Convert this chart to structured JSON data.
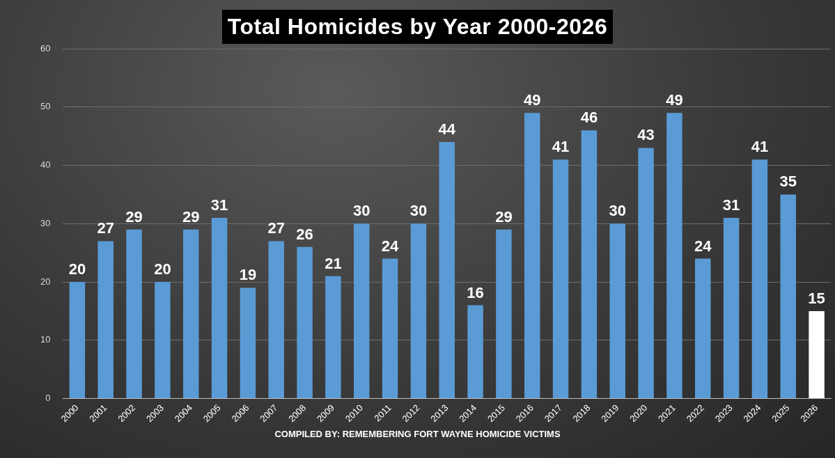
{
  "chart_data": {
    "type": "bar",
    "title": "Total Homicides by Year 2000-2026",
    "categories": [
      "2000",
      "2001",
      "2002",
      "2003",
      "2004",
      "2005",
      "2006",
      "2007",
      "2008",
      "2009",
      "2010",
      "2011",
      "2012",
      "2013",
      "2014",
      "2015",
      "2016",
      "2017",
      "2018",
      "2019",
      "2020",
      "2021",
      "2022",
      "2023",
      "2024",
      "2025",
      "2026"
    ],
    "values": [
      20,
      27,
      29,
      20,
      29,
      31,
      19,
      27,
      26,
      21,
      30,
      24,
      30,
      44,
      16,
      29,
      49,
      41,
      46,
      30,
      43,
      49,
      24,
      31,
      41,
      35,
      15
    ],
    "colors": [
      "#5b9bd5",
      "#5b9bd5",
      "#5b9bd5",
      "#5b9bd5",
      "#5b9bd5",
      "#5b9bd5",
      "#5b9bd5",
      "#5b9bd5",
      "#5b9bd5",
      "#5b9bd5",
      "#5b9bd5",
      "#5b9bd5",
      "#5b9bd5",
      "#5b9bd5",
      "#5b9bd5",
      "#5b9bd5",
      "#5b9bd5",
      "#5b9bd5",
      "#5b9bd5",
      "#5b9bd5",
      "#5b9bd5",
      "#5b9bd5",
      "#5b9bd5",
      "#5b9bd5",
      "#5b9bd5",
      "#5b9bd5",
      "#ffffff"
    ],
    "ylim": [
      0,
      60
    ],
    "yticks": [
      0,
      10,
      20,
      30,
      40,
      50,
      60
    ],
    "grid": "y",
    "data_labels": true,
    "annotations": [
      "COMPILED BY: REMEMBERING FORT WAYNE HOMICIDE VICTIMS"
    ]
  }
}
